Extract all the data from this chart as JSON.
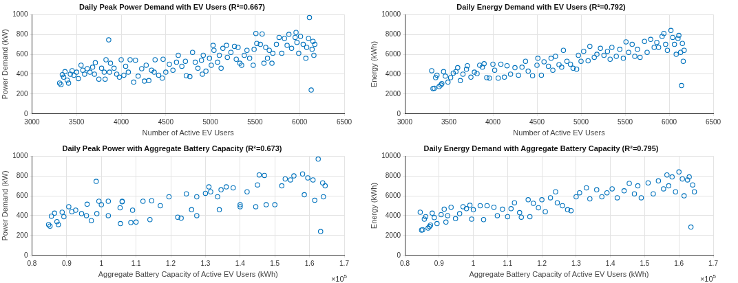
{
  "chart_data": [
    {
      "type": "scatter",
      "title": "Daily Peak Power Demand with EV Users (R²=0.667)",
      "xlabel": "Number of Active EV Users",
      "ylabel": "Power Demand (kW)",
      "xlim": [
        3000,
        6500
      ],
      "xticks": [
        3000,
        3500,
        4000,
        4500,
        5000,
        5500,
        6000,
        6500
      ],
      "ylim": [
        0,
        1000
      ],
      "yticks": [
        0,
        200,
        400,
        600,
        800,
        1000
      ],
      "grid": true,
      "marker": "circle",
      "series": [
        {
          "color": "#0072bd",
          "x": [
            3310,
            3325,
            3340,
            3355,
            3370,
            3395,
            3410,
            3430,
            3450,
            3470,
            3500,
            3520,
            3550,
            3570,
            3590,
            3620,
            3650,
            3680,
            3700,
            3710,
            3750,
            3780,
            3810,
            3820,
            3830,
            3860,
            3870,
            3880,
            3920,
            3950,
            3980,
            4000,
            4030,
            4050,
            4080,
            4100,
            4140,
            4160,
            4190,
            4230,
            4260,
            4280,
            4310,
            4340,
            4370,
            4380,
            4420,
            4460,
            4470,
            4500,
            4540,
            4580,
            4620,
            4640,
            4680,
            4720,
            4730,
            4770,
            4800,
            4830,
            4860,
            4900,
            4910,
            4920,
            4950,
            4990,
            5010,
            5030,
            5040,
            5080,
            5100,
            5120,
            5140,
            5180,
            5190,
            5230,
            5270,
            5290,
            5310,
            5330,
            5350,
            5380,
            5410,
            5440,
            5480,
            5490,
            5510,
            5520,
            5560,
            5580,
            5600,
            5620,
            5640,
            5660,
            5690,
            5700,
            5740,
            5770,
            5800,
            5830,
            5860,
            5880,
            5910,
            5950,
            5960,
            5970,
            5990,
            6010,
            6040,
            6070,
            6080,
            6100,
            6110,
            6130,
            6140,
            6150,
            6160,
            6170
          ],
          "values": [
            310,
            295,
            395,
            370,
            425,
            340,
            310,
            400,
            435,
            390,
            420,
            355,
            490,
            440,
            400,
            455,
            420,
            470,
            400,
            515,
            350,
            460,
            420,
            350,
            545,
            745,
            420,
            510,
            460,
            400,
            370,
            545,
            390,
            480,
            420,
            545,
            320,
            540,
            380,
            455,
            330,
            490,
            335,
            440,
            420,
            545,
            390,
            360,
            550,
            420,
            500,
            440,
            520,
            590,
            480,
            530,
            385,
            375,
            620,
            520,
            460,
            540,
            400,
            590,
            430,
            560,
            490,
            690,
            640,
            520,
            590,
            460,
            660,
            690,
            570,
            620,
            680,
            550,
            670,
            510,
            490,
            590,
            640,
            560,
            490,
            650,
            810,
            710,
            700,
            805,
            510,
            670,
            560,
            640,
            510,
            610,
            700,
            770,
            610,
            760,
            690,
            800,
            660,
            770,
            820,
            720,
            610,
            780,
            700,
            560,
            670,
            760,
            970,
            240,
            650,
            730,
            590,
            700
          ]
        }
      ]
    },
    {
      "type": "scatter",
      "title": "Daily Energy Demand with EV Users (R²=0.792)",
      "xlabel": "Number of Active EV Users",
      "ylabel": "Energy (kWh)",
      "xlim": [
        3000,
        6500
      ],
      "xticks": [
        3000,
        3500,
        4000,
        4500,
        5000,
        5500,
        6000,
        6500
      ],
      "ylim": [
        0,
        10000
      ],
      "yticks": [
        0,
        2000,
        4000,
        6000,
        8000,
        10000
      ],
      "grid": true,
      "marker": "circle",
      "series": [
        {
          "color": "#0072bd",
          "x": [
            3305,
            3320,
            3335,
            3350,
            3365,
            3390,
            3410,
            3420,
            3440,
            3460,
            3490,
            3520,
            3550,
            3580,
            3600,
            3630,
            3660,
            3700,
            3710,
            3750,
            3790,
            3820,
            3850,
            3880,
            3900,
            3930,
            3960,
            4000,
            4020,
            4060,
            4090,
            4130,
            4160,
            4200,
            4250,
            4290,
            4330,
            4370,
            4400,
            4450,
            4500,
            4510,
            4550,
            4580,
            4630,
            4660,
            4680,
            4710,
            4750,
            4780,
            4800,
            4840,
            4880,
            4910,
            4950,
            4970,
            5000,
            5030,
            5080,
            5100,
            5150,
            5180,
            5220,
            5260,
            5300,
            5330,
            5350,
            5400,
            5440,
            5480,
            5510,
            5540,
            5580,
            5610,
            5640,
            5670,
            5720,
            5750,
            5790,
            5830,
            5860,
            5880,
            5920,
            5940,
            5960,
            5980,
            6020,
            6040,
            6060,
            6080,
            6100,
            6110,
            6130,
            6140,
            6150,
            6160,
            6170
          ],
          "values": [
            4350,
            2550,
            2580,
            3650,
            3900,
            2750,
            2900,
            3050,
            4250,
            3800,
            3200,
            3650,
            4100,
            4250,
            4650,
            3350,
            4000,
            4500,
            4850,
            3700,
            4200,
            4050,
            4900,
            4700,
            5050,
            3650,
            3600,
            5000,
            4400,
            3600,
            5000,
            3700,
            4850,
            4000,
            4650,
            3900,
            4700,
            5300,
            4300,
            3850,
            4900,
            5600,
            3900,
            5250,
            4800,
            5600,
            4400,
            5800,
            4950,
            4700,
            6400,
            5300,
            5000,
            4600,
            4500,
            5900,
            5300,
            6300,
            5350,
            6800,
            5700,
            6000,
            6600,
            5900,
            6300,
            5500,
            6700,
            5800,
            6500,
            5600,
            7250,
            6200,
            7000,
            5800,
            6500,
            5700,
            7300,
            6200,
            7500,
            6700,
            7200,
            6700,
            7800,
            8100,
            7000,
            6400,
            8400,
            7700,
            7000,
            6000,
            7600,
            7900,
            6200,
            2850,
            7100,
            5300,
            6400
          ]
        }
      ]
    },
    {
      "type": "scatter",
      "title": "Daily Peak Power with Aggregate Battery Capacity (R²=0.673)",
      "xlabel": "Aggregate Battery Capacity of Active EV Users (kWh)",
      "ylabel": "Power Demand (kW)",
      "annotations": [
        "×10$^{5}$"
      ],
      "xlim": [
        0.8,
        1.7
      ],
      "xticks": [
        0.8,
        0.9,
        1,
        1.1,
        1.2,
        1.3,
        1.4,
        1.5,
        1.6,
        1.7
      ],
      "ylim": [
        0,
        1000
      ],
      "yticks": [
        0,
        200,
        400,
        600,
        800,
        1000
      ],
      "grid": true,
      "marker": "circle",
      "series": [
        {
          "color": "#0072bd",
          "x": [
            0.848,
            0.852,
            0.856,
            0.865,
            0.872,
            0.876,
            0.887,
            0.892,
            0.906,
            0.915,
            0.926,
            0.943,
            0.957,
            0.959,
            0.971,
            0.987,
            0.993,
            0.985,
            1.0,
            1.02,
            1.02,
            1.054,
            1.06,
            1.055,
            1.06,
            1.09,
            1.085,
            1.1,
            1.12,
            1.14,
            1.145,
            1.17,
            1.195,
            1.22,
            1.23,
            1.245,
            1.26,
            1.275,
            1.275,
            1.3,
            1.31,
            1.315,
            1.335,
            1.34,
            1.345,
            1.36,
            1.38,
            1.4,
            1.4,
            1.42,
            1.445,
            1.455,
            1.45,
            1.47,
            1.475,
            1.5,
            1.52,
            1.53,
            1.545,
            1.555,
            1.58,
            1.585,
            1.595,
            1.615,
            1.61,
            1.625,
            1.632,
            1.638,
            1.64,
            1.645
          ],
          "values": [
            310,
            295,
            395,
            425,
            340,
            310,
            435,
            390,
            490,
            440,
            455,
            420,
            400,
            515,
            350,
            420,
            545,
            745,
            510,
            400,
            545,
            480,
            545,
            320,
            540,
            455,
            330,
            335,
            545,
            360,
            550,
            500,
            590,
            385,
            375,
            620,
            460,
            400,
            590,
            625,
            690,
            640,
            590,
            460,
            660,
            690,
            680,
            510,
            490,
            640,
            490,
            810,
            710,
            805,
            510,
            510,
            700,
            770,
            760,
            800,
            820,
            610,
            780,
            555,
            760,
            970,
            240,
            730,
            590,
            700
          ]
        }
      ]
    },
    {
      "type": "scatter",
      "title": "Daily Energy Demand with Aggregate Battery Capacity (R²=0.795)",
      "xlabel": "Aggregate Battery Capacity of Active EV Users (kWh)",
      "ylabel": "Energy (kWh)",
      "annotations": [
        "×10$^{5}$"
      ],
      "xlim": [
        0.8,
        1.7
      ],
      "xticks": [
        0.8,
        0.9,
        1,
        1.1,
        1.2,
        1.3,
        1.4,
        1.5,
        1.6,
        1.7
      ],
      "ylim": [
        0,
        10000
      ],
      "yticks": [
        0,
        2000,
        4000,
        6000,
        8000,
        10000
      ],
      "grid": true,
      "marker": "circle",
      "series": [
        {
          "color": "#0072bd",
          "x": [
            0.845,
            0.849,
            0.852,
            0.857,
            0.861,
            0.868,
            0.872,
            0.875,
            0.88,
            0.886,
            0.894,
            0.906,
            0.915,
            0.92,
            0.925,
            0.935,
            0.948,
            0.96,
            0.97,
            0.98,
            0.99,
            0.995,
            1.0,
            1.02,
            1.03,
            1.04,
            1.06,
            1.07,
            1.085,
            1.1,
            1.11,
            1.12,
            1.135,
            1.14,
            1.16,
            1.165,
            1.175,
            1.19,
            1.2,
            1.21,
            1.225,
            1.24,
            1.245,
            1.26,
            1.275,
            1.285,
            1.3,
            1.31,
            1.33,
            1.34,
            1.36,
            1.375,
            1.39,
            1.405,
            1.42,
            1.44,
            1.455,
            1.47,
            1.48,
            1.49,
            1.51,
            1.525,
            1.54,
            1.555,
            1.565,
            1.57,
            1.58,
            1.59,
            1.6,
            1.61,
            1.615,
            1.625,
            1.63,
            1.635,
            1.64,
            1.645
          ],
          "values": [
            4350,
            2550,
            2580,
            3650,
            3900,
            2750,
            2900,
            3050,
            4250,
            3800,
            3200,
            4100,
            4650,
            3350,
            4000,
            4850,
            3700,
            4200,
            4900,
            4700,
            5050,
            3650,
            4600,
            5000,
            3600,
            5000,
            4850,
            4000,
            4650,
            3900,
            4700,
            5300,
            4300,
            3850,
            5600,
            3900,
            5250,
            4800,
            5600,
            4400,
            5800,
            6400,
            5300,
            5000,
            4600,
            4500,
            5900,
            6300,
            6800,
            5700,
            6600,
            5900,
            6300,
            6700,
            5800,
            6500,
            7250,
            6200,
            7000,
            5800,
            7300,
            6200,
            7500,
            6700,
            8100,
            7000,
            7900,
            6400,
            8400,
            7700,
            6000,
            7600,
            7900,
            2850,
            7100,
            6400
          ]
        }
      ]
    }
  ]
}
